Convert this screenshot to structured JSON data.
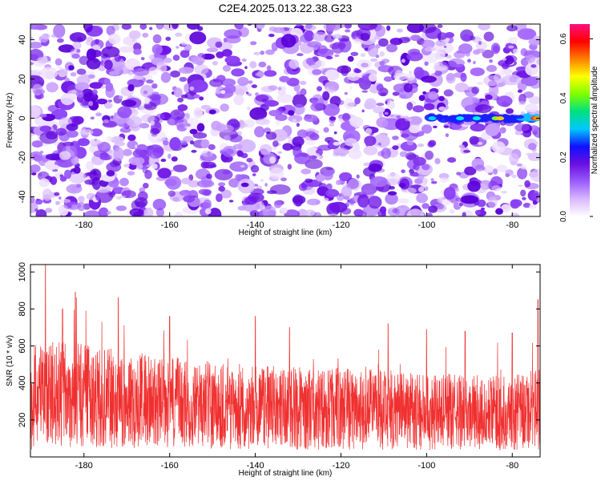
{
  "title": "C2E4.2025.013.22.38.G23",
  "chart_data": [
    {
      "type": "heatmap",
      "xlabel": "Height of straight line (km)",
      "ylabel": "Frequency (Hz)",
      "xlim": [
        -192.5,
        -73.5
      ],
      "ylim": [
        -50,
        48
      ],
      "xticks": [
        -180,
        -160,
        -140,
        -120,
        -100,
        -80
      ],
      "yticks": [
        -40,
        -20,
        0,
        20,
        40
      ],
      "colorbar": {
        "label": "Normalized spectral amplitude",
        "range": [
          0,
          0.65
        ],
        "ticks": [
          "0.0",
          "0.2",
          "0.4",
          "0.6"
        ],
        "colors": [
          "#ffffff",
          "#d9b8ff",
          "#9a5cff",
          "#6a0fe0",
          "#1010ff",
          "#00c8ff",
          "#00e080",
          "#80ff00",
          "#ffff00",
          "#ff8000",
          "#ff0000",
          "#ff1080"
        ]
      },
      "feature": {
        "description_value": "signal ridge",
        "frequency": 0,
        "x_start": -100,
        "x_end": -74,
        "peak_amplitude": 0.62
      }
    },
    {
      "type": "line",
      "xlabel": "Height of straight line (km)",
      "ylabel": "SNR (10 * v/v)",
      "xlim": [
        -192.5,
        -73.5
      ],
      "ylim": [
        0,
        1040
      ],
      "xticks": [
        -180,
        -160,
        -140,
        -120,
        -100,
        -80
      ],
      "yticks": [
        200,
        400,
        600,
        800,
        1000
      ],
      "color": "#f03030",
      "mean_level": [
        {
          "x": -192,
          "y": 330
        },
        {
          "x": -185,
          "y": 340
        },
        {
          "x": -180,
          "y": 330
        },
        {
          "x": -170,
          "y": 310
        },
        {
          "x": -160,
          "y": 290
        },
        {
          "x": -150,
          "y": 280
        },
        {
          "x": -140,
          "y": 270
        },
        {
          "x": -130,
          "y": 265
        },
        {
          "x": -120,
          "y": 260
        },
        {
          "x": -110,
          "y": 255
        },
        {
          "x": -100,
          "y": 245
        },
        {
          "x": -90,
          "y": 240
        },
        {
          "x": -80,
          "y": 235
        },
        {
          "x": -74,
          "y": 260
        }
      ],
      "peaks": [
        {
          "x": -189,
          "y": 1040
        },
        {
          "x": -185,
          "y": 800
        },
        {
          "x": -182,
          "y": 890
        },
        {
          "x": -172,
          "y": 860
        },
        {
          "x": -160,
          "y": 760
        },
        {
          "x": -140,
          "y": 760
        },
        {
          "x": -132,
          "y": 700
        },
        {
          "x": -109,
          "y": 720
        },
        {
          "x": -100,
          "y": 690
        },
        {
          "x": -91,
          "y": 680
        },
        {
          "x": -80,
          "y": 670
        },
        {
          "x": -74,
          "y": 850
        }
      ]
    }
  ]
}
